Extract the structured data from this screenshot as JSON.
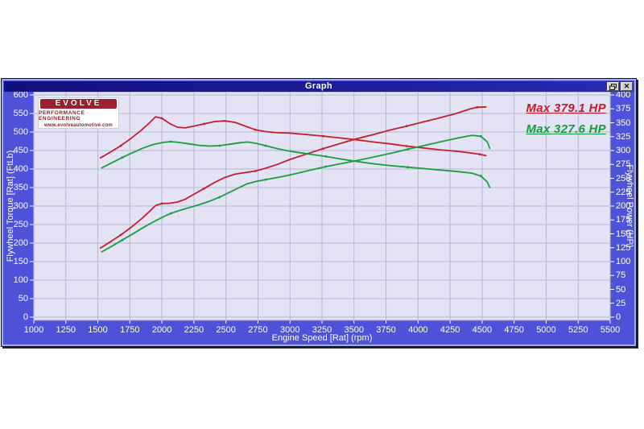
{
  "window": {
    "title": "Graph",
    "buttons": {
      "restore": "restore-window",
      "close": "close-window"
    }
  },
  "logo": {
    "brand": "EVOLVE",
    "line1": "PERFORMANCE ENGINEERING",
    "line2": "www.evolveautomotive.com"
  },
  "legend": {
    "items": [
      {
        "label": "Max 379.1 HP",
        "color": "#c41e2d"
      },
      {
        "label": "Max 327.6 HP",
        "color": "#149c3c"
      }
    ],
    "position": "top-right-inside-plot"
  },
  "colors": {
    "curve_red": "#c41e2d",
    "curve_green": "#169e3e",
    "plot_background": "#e3e3f5",
    "grid": "#b6b6d4",
    "window_fill": "#4e52d9",
    "tick_text": "#ffffff"
  },
  "chart_data": {
    "type": "line",
    "title": "Graph",
    "xlabel": "Engine Speed [Rat] (rpm)",
    "ylabel_left": "Flywheel Torque [Rat] (FtLb)",
    "ylabel_right": "Flywheel Power (HP)",
    "xlim": [
      1000,
      5500
    ],
    "ylim_left": [
      0,
      600
    ],
    "ylim_right": [
      0,
      400
    ],
    "grid": "on",
    "xticks": [
      1000,
      1250,
      1500,
      1750,
      2000,
      2250,
      2500,
      2750,
      3000,
      3250,
      3500,
      3750,
      4000,
      4250,
      4500,
      4750,
      5000,
      5250,
      5500
    ],
    "yticks_left": [
      0,
      50,
      100,
      150,
      200,
      250,
      300,
      350,
      400,
      450,
      500,
      550,
      600
    ],
    "yticks_right": [
      0,
      25,
      50,
      75,
      100,
      125,
      150,
      175,
      200,
      225,
      250,
      275,
      300,
      325,
      350,
      375,
      400
    ],
    "series": [
      {
        "name": "flywheel-torque-red",
        "axis": "left",
        "color": "#c41e2d",
        "max_label": "Max 379.1 HP",
        "points": [
          [
            1520,
            430
          ],
          [
            1600,
            446
          ],
          [
            1680,
            463
          ],
          [
            1760,
            483
          ],
          [
            1840,
            505
          ],
          [
            1900,
            524
          ],
          [
            1950,
            541
          ],
          [
            2000,
            537
          ],
          [
            2060,
            523
          ],
          [
            2120,
            513
          ],
          [
            2180,
            511
          ],
          [
            2250,
            516
          ],
          [
            2330,
            522
          ],
          [
            2410,
            528
          ],
          [
            2490,
            530
          ],
          [
            2570,
            526
          ],
          [
            2650,
            516
          ],
          [
            2730,
            506
          ],
          [
            2810,
            501
          ],
          [
            2900,
            498
          ],
          [
            3000,
            497
          ],
          [
            3130,
            493
          ],
          [
            3260,
            489
          ],
          [
            3390,
            484
          ],
          [
            3520,
            479
          ],
          [
            3650,
            473
          ],
          [
            3780,
            468
          ],
          [
            3910,
            462
          ],
          [
            4040,
            457
          ],
          [
            4170,
            452
          ],
          [
            4300,
            448
          ],
          [
            4400,
            444
          ],
          [
            4480,
            440
          ],
          [
            4530,
            436
          ]
        ]
      },
      {
        "name": "flywheel-power-red",
        "axis": "right",
        "color": "#c41e2d",
        "max_value_hp": 379.1,
        "points": [
          [
            1520,
            124.4
          ],
          [
            1600,
            135.9
          ],
          [
            1680,
            148.1
          ],
          [
            1760,
            161.8
          ],
          [
            1840,
            176.9
          ],
          [
            1900,
            189.6
          ],
          [
            1950,
            200.9
          ],
          [
            2000,
            204.5
          ],
          [
            2060,
            205.1
          ],
          [
            2120,
            207.1
          ],
          [
            2180,
            212.1
          ],
          [
            2250,
            221.1
          ],
          [
            2330,
            231.6
          ],
          [
            2410,
            242.3
          ],
          [
            2490,
            251.3
          ],
          [
            2570,
            257.4
          ],
          [
            2650,
            260.3
          ],
          [
            2730,
            263.0
          ],
          [
            2810,
            268.1
          ],
          [
            2900,
            275.0
          ],
          [
            3000,
            283.9
          ],
          [
            3130,
            293.8
          ],
          [
            3260,
            303.5
          ],
          [
            3390,
            312.4
          ],
          [
            3520,
            321.1
          ],
          [
            3650,
            328.7
          ],
          [
            3780,
            336.8
          ],
          [
            3910,
            343.9
          ],
          [
            4040,
            351.5
          ],
          [
            4170,
            358.9
          ],
          [
            4300,
            366.8
          ],
          [
            4400,
            374.5
          ],
          [
            4460,
            377.8
          ],
          [
            4530,
            378.6
          ]
        ]
      },
      {
        "name": "flywheel-torque-green",
        "axis": "left",
        "color": "#169e3e",
        "points": [
          [
            1530,
            403
          ],
          [
            1610,
            417
          ],
          [
            1690,
            431
          ],
          [
            1770,
            444
          ],
          [
            1850,
            456
          ],
          [
            1930,
            466
          ],
          [
            2010,
            472
          ],
          [
            2070,
            474
          ],
          [
            2130,
            472
          ],
          [
            2210,
            468
          ],
          [
            2290,
            464
          ],
          [
            2370,
            462
          ],
          [
            2450,
            463
          ],
          [
            2530,
            467
          ],
          [
            2610,
            471
          ],
          [
            2670,
            473
          ],
          [
            2740,
            469
          ],
          [
            2810,
            463
          ],
          [
            2890,
            456
          ],
          [
            2970,
            450
          ],
          [
            3060,
            445
          ],
          [
            3160,
            440
          ],
          [
            3280,
            434
          ],
          [
            3400,
            427
          ],
          [
            3530,
            420
          ],
          [
            3660,
            414
          ],
          [
            3790,
            409
          ],
          [
            3920,
            405
          ],
          [
            4050,
            401
          ],
          [
            4180,
            397
          ],
          [
            4310,
            393
          ],
          [
            4420,
            389
          ],
          [
            4490,
            381
          ],
          [
            4540,
            365
          ],
          [
            4560,
            350
          ]
        ]
      },
      {
        "name": "flywheel-power-green",
        "axis": "right",
        "color": "#169e3e",
        "max_value_hp": 327.6,
        "points": [
          [
            1530,
            117.4
          ],
          [
            1610,
            127.8
          ],
          [
            1690,
            138.7
          ],
          [
            1770,
            149.6
          ],
          [
            1850,
            160.6
          ],
          [
            1930,
            171.2
          ],
          [
            2010,
            180.6
          ],
          [
            2070,
            186.8
          ],
          [
            2130,
            191.4
          ],
          [
            2210,
            196.9
          ],
          [
            2290,
            202.3
          ],
          [
            2370,
            208.5
          ],
          [
            2450,
            216.0
          ],
          [
            2530,
            225.0
          ],
          [
            2610,
            234.1
          ],
          [
            2670,
            240.4
          ],
          [
            2740,
            244.7
          ],
          [
            2810,
            247.7
          ],
          [
            2890,
            250.9
          ],
          [
            2970,
            254.5
          ],
          [
            3060,
            259.3
          ],
          [
            3160,
            264.7
          ],
          [
            3280,
            271.0
          ],
          [
            3400,
            276.4
          ],
          [
            3530,
            282.3
          ],
          [
            3660,
            288.5
          ],
          [
            3790,
            295.1
          ],
          [
            3920,
            302.3
          ],
          [
            4050,
            309.2
          ],
          [
            4180,
            316.0
          ],
          [
            4310,
            322.5
          ],
          [
            4420,
            327.4
          ],
          [
            4490,
            325.7
          ],
          [
            4540,
            315.5
          ],
          [
            4560,
            303.9
          ]
        ]
      }
    ]
  }
}
